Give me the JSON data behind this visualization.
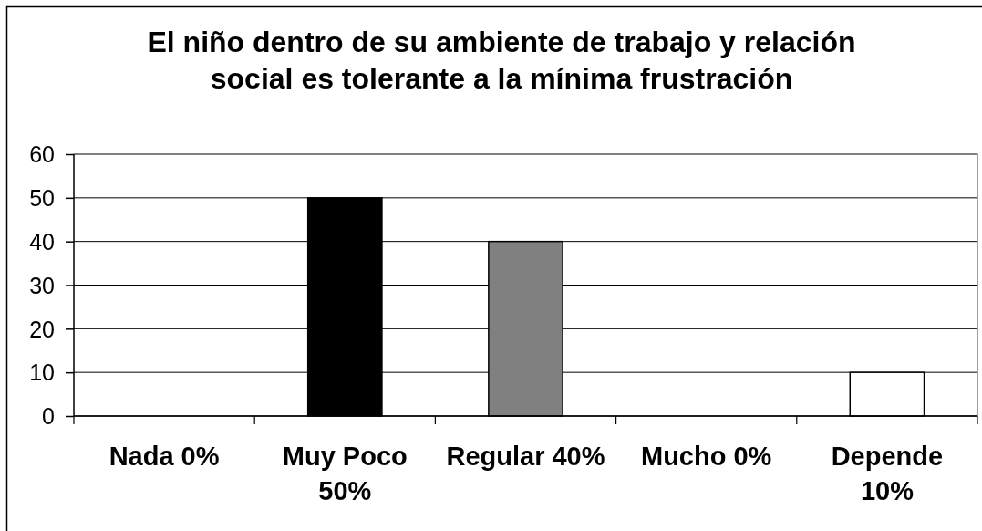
{
  "chart_data": {
    "type": "bar",
    "title": "El niño dentro de su ambiente de trabajo y relación social es tolerante a la mínima frustración",
    "categories": [
      "Nada 0%",
      "Muy Poco 50%",
      "Regular 40%",
      "Mucho 0%",
      "Depende 10%"
    ],
    "values": [
      0,
      50,
      40,
      0,
      10
    ],
    "colors": [
      "#ffffff",
      "#000000",
      "#808080",
      "#ffffff",
      "#ffffff"
    ],
    "ylim": [
      0,
      60
    ],
    "yticks": [
      0,
      10,
      20,
      30,
      40,
      50,
      60
    ],
    "grid": "y"
  }
}
